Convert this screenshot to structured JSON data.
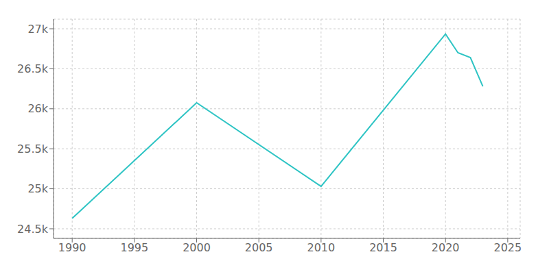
{
  "chart_data": {
    "type": "line",
    "x": [
      1990,
      2000,
      2010,
      2020,
      2021,
      2022,
      2023
    ],
    "values": [
      24630,
      26075,
      25030,
      26935,
      26700,
      26640,
      26280
    ],
    "color": "#2EC4C4",
    "xlim": [
      1988.5,
      2026
    ],
    "xticks": [
      1990,
      1995,
      2000,
      2005,
      2010,
      2015,
      2020,
      2025
    ],
    "ylim": [
      24380,
      27120
    ],
    "yticks": [
      {
        "value": 24500,
        "label": "24.5k"
      },
      {
        "value": 25000,
        "label": "25k"
      },
      {
        "value": 25500,
        "label": "25.5k"
      },
      {
        "value": 26000,
        "label": "26k"
      },
      {
        "value": 26500,
        "label": "26.5k"
      },
      {
        "value": 27000,
        "label": "27k"
      }
    ],
    "grid": true
  }
}
